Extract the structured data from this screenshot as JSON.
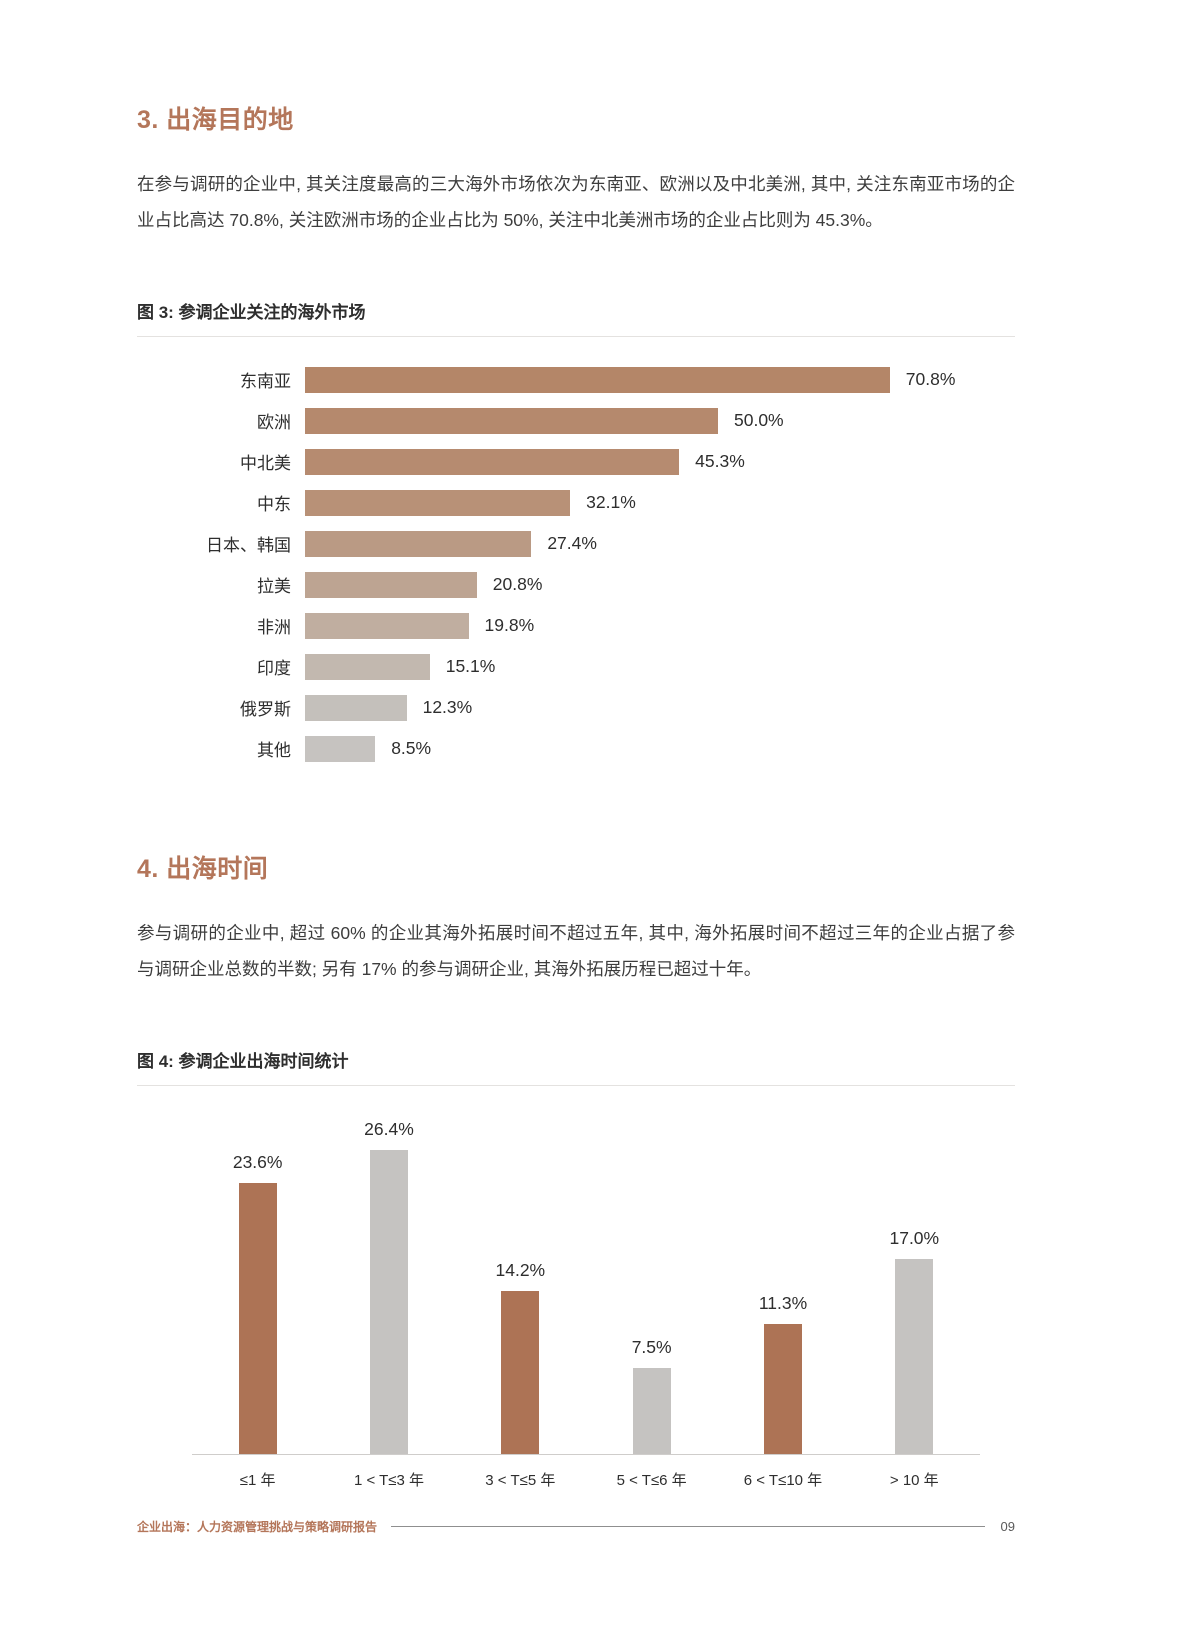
{
  "sections": {
    "destinations": {
      "title": "3. 出海目的地",
      "paragraph": "在参与调研的企业中, 其关注度最高的三大海外市场依次为东南亚、欧洲以及中北美洲, 其中, 关注东南亚市场的企业占比高达 70.8%, 关注欧洲市场的企业占比为 50%, 关注中北美洲市场的企业占比则为 45.3%。"
    },
    "timing": {
      "title": "4. 出海时间",
      "paragraph": "参与调研的企业中, 超过 60% 的企业其海外拓展时间不超过五年, 其中, 海外拓展时间不超过三年的企业占据了参与调研企业总数的半数; 另有 17% 的参与调研企业, 其海外拓展历程已超过十年。"
    }
  },
  "footer": {
    "text": "企业出海：人力资源管理挑战与策略调研报告",
    "page_number": "09"
  },
  "colors": {
    "accent": "#b4765a",
    "bar_brown": "#ad7355",
    "bar_gray": "#c5c3c1"
  },
  "chart_data": [
    {
      "type": "bar",
      "orientation": "horizontal",
      "title": "图 3: 参调企业关注的海外市场",
      "categories": [
        "东南亚",
        "欧洲",
        "中北美",
        "中东",
        "日本、韩国",
        "拉美",
        "非洲",
        "印度",
        "俄罗斯",
        "其他"
      ],
      "values": [
        70.8,
        50.0,
        45.3,
        32.1,
        27.4,
        20.8,
        19.8,
        15.1,
        12.3,
        8.5
      ],
      "labels": [
        "70.8%",
        "50.0%",
        "45.3%",
        "32.1%",
        "27.4%",
        "20.8%",
        "19.8%",
        "15.1%",
        "12.3%",
        "8.5%"
      ],
      "bar_colors": [
        "#b48668",
        "#b5896d",
        "#b68b70",
        "#b89177",
        "#ba9a84",
        "#bda492",
        "#c0aea0",
        "#c2b8af",
        "#c4c0bb",
        "#c6c3c0"
      ],
      "xlim": [
        0,
        75
      ],
      "grid": false,
      "value_labels": "outside-end"
    },
    {
      "type": "bar",
      "orientation": "vertical",
      "title": "图 4: 参调企业出海时间统计",
      "categories": [
        "≤1 年",
        "1 < T≤3 年",
        "3 < T≤5 年",
        "5 < T≤6 年",
        "6 < T≤10 年",
        "> 10 年"
      ],
      "values": [
        23.6,
        26.4,
        14.2,
        7.5,
        11.3,
        17.0
      ],
      "labels": [
        "23.6%",
        "26.4%",
        "14.2%",
        "7.5%",
        "11.3%",
        "17.0%"
      ],
      "bar_colors": [
        "#ad7355",
        "#c5c3c1",
        "#ad7355",
        "#c5c3c1",
        "#ad7355",
        "#c5c3c1"
      ],
      "ylim": [
        0,
        30
      ],
      "grid": false,
      "value_labels": "above"
    }
  ]
}
